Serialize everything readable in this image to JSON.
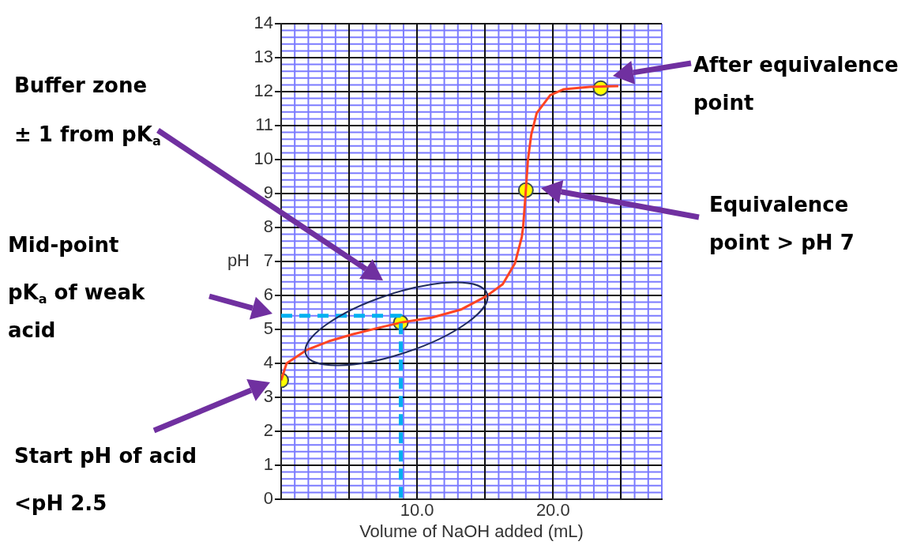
{
  "chart_data": {
    "type": "line",
    "xlabel": "Volume of NaOH added (mL)",
    "ylabel": "pH",
    "xlim": [
      0,
      28
    ],
    "ylim": [
      0,
      14
    ],
    "xticks": [
      {
        "value": 5,
        "label": null
      },
      {
        "value": 10,
        "label": "10.0"
      },
      {
        "value": 15,
        "label": null
      },
      {
        "value": 20,
        "label": "20.0"
      },
      {
        "value": 25,
        "label": null
      }
    ],
    "yticks": [
      0,
      1,
      2,
      3,
      4,
      5,
      6,
      7,
      8,
      9,
      10,
      11,
      12,
      13,
      14
    ],
    "grid": true,
    "series": [
      {
        "color": "#00b0f0",
        "line_style": "dashed",
        "marker": "none",
        "x": [
          0,
          8.8,
          8.8
        ],
        "values": [
          5.4,
          5.4,
          0
        ]
      },
      {
        "color": "#ff4422",
        "line_style": "solid",
        "marker": "none",
        "x": [
          0,
          0.4,
          1.9,
          3.5,
          5.3,
          7.2,
          8.8,
          11.1,
          13.2,
          15.1,
          16.3,
          17.2,
          17.7,
          17.8,
          18.0,
          18.15,
          18.4,
          18.8,
          19.8,
          20.8,
          22.7,
          24.8
        ],
        "values": [
          3.5,
          4.0,
          4.4,
          4.65,
          4.86,
          5.05,
          5.2,
          5.35,
          5.58,
          5.98,
          6.33,
          6.95,
          7.72,
          8.02,
          9.1,
          9.98,
          10.74,
          11.37,
          11.9,
          12.07,
          12.14,
          12.16
        ]
      },
      {
        "type": "scatter",
        "color": "#ffff00",
        "marker": "circle",
        "x": [
          0,
          8.8,
          18.0,
          23.5
        ],
        "values": [
          3.5,
          5.2,
          9.1,
          12.1
        ]
      }
    ],
    "annotations": [
      "Buffer zone",
      "± 1 from pK$_{a}$",
      "Mid-point",
      "pK$_{a}$ of weak acid",
      "Start pH of acid",
      "<pH 2.5",
      "After equivalence point",
      "Equivalence point > pH 7"
    ]
  }
}
